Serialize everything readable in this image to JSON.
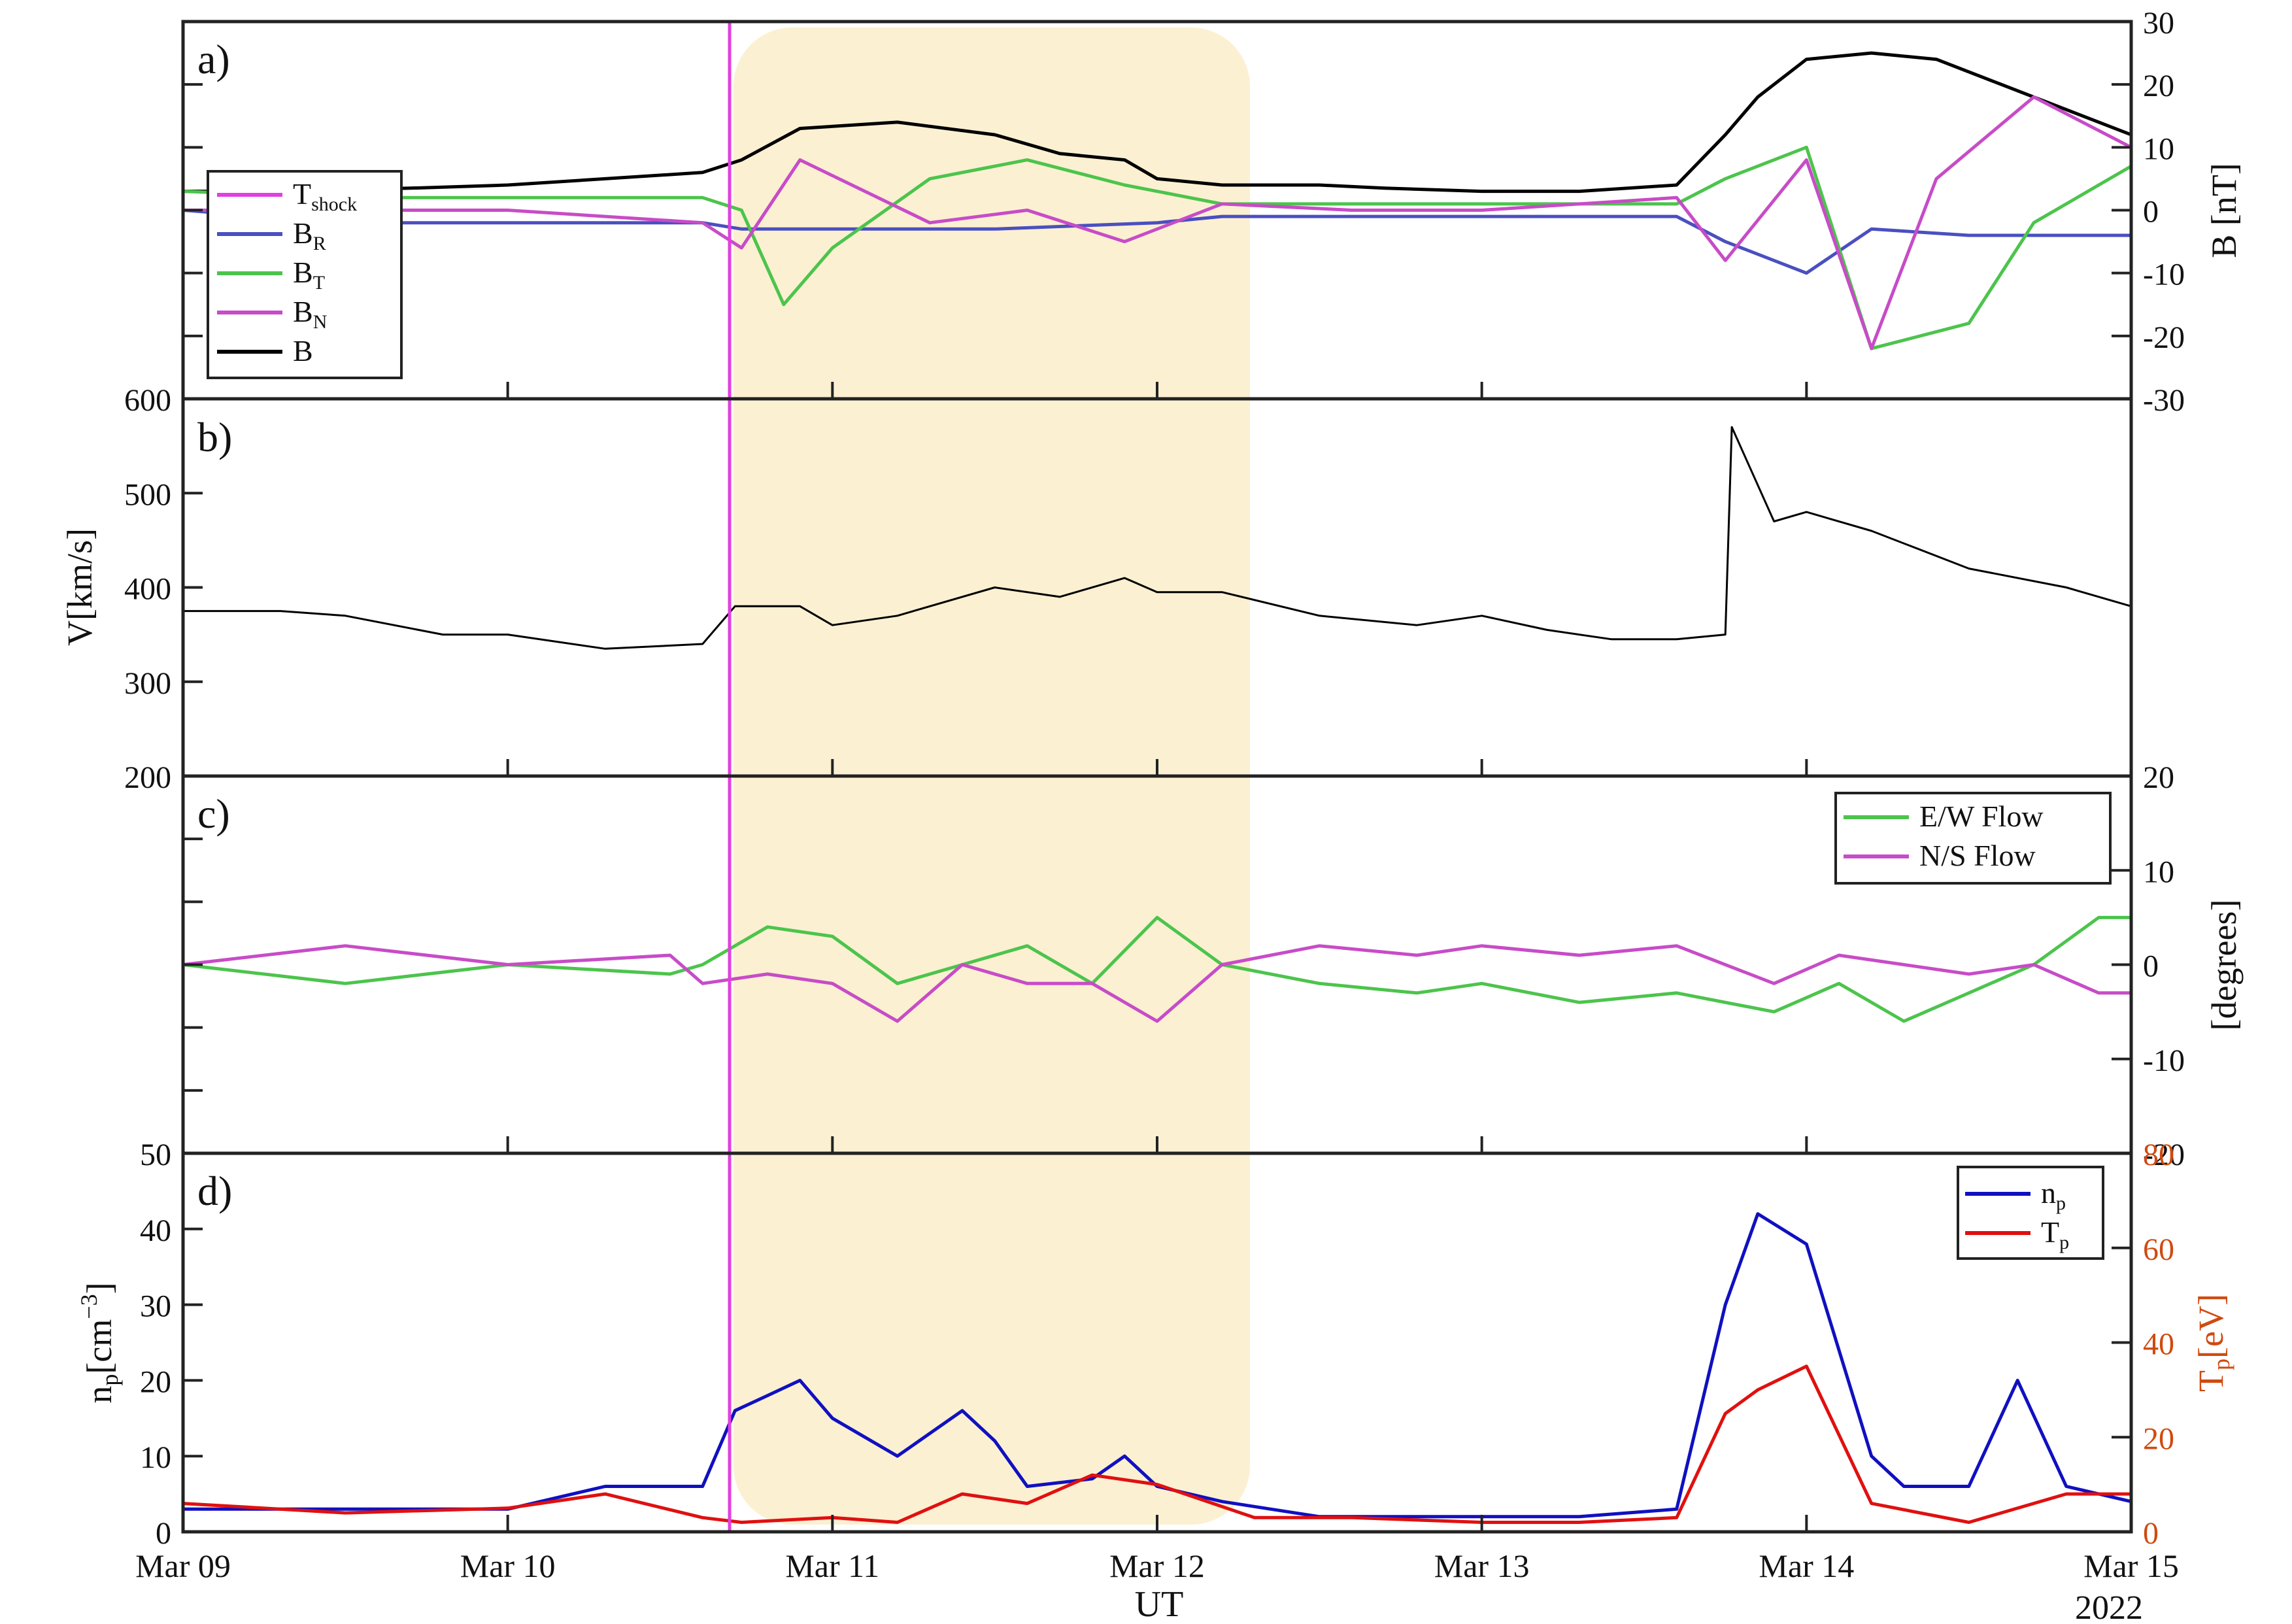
{
  "chart_data": [
    {
      "type": "line",
      "panel_label": "a)",
      "x_ticks": [
        "Mar 09",
        "Mar 10",
        "Mar 11",
        "Mar 12",
        "Mar 13",
        "Mar 14",
        "Mar 15"
      ],
      "ylabel": "B [nT]",
      "ylim": [
        -30,
        30
      ],
      "y_ticks": [
        "30",
        "20",
        "10",
        "0",
        "-10",
        "-20",
        "-30"
      ],
      "legend": {
        "placement": "left",
        "entries": [
          {
            "main": "T",
            "sub": "shock",
            "color": "#e040e0"
          },
          {
            "main": "B",
            "sub": "R",
            "color": "#4a4fc0"
          },
          {
            "main": "B",
            "sub": "T",
            "color": "#4cc44c"
          },
          {
            "main": "B",
            "sub": "N",
            "color": "#c74cc7"
          },
          {
            "main": "B",
            "sub": "",
            "color": "#000000"
          }
        ]
      },
      "series": [
        {
          "key": "B",
          "color": "#000000",
          "x": [
            0,
            0.3,
            0.7,
            1.0,
            1.3,
            1.6,
            1.72,
            1.9,
            2.2,
            2.5,
            2.7,
            2.9,
            3.0,
            3.2,
            3.5,
            3.7,
            4.0,
            4.3,
            4.6,
            4.75,
            4.85,
            5.0,
            5.2,
            5.4,
            5.7,
            6.0
          ],
          "y": [
            3,
            3,
            3.5,
            4,
            5,
            6,
            8,
            13,
            14,
            12,
            9,
            8,
            5,
            4,
            4,
            3.5,
            3,
            3,
            4,
            12,
            18,
            24,
            25,
            24,
            18,
            12
          ]
        },
        {
          "key": "BR",
          "color": "#4a4fc0",
          "x": [
            0,
            0.5,
            1.0,
            1.6,
            1.72,
            2.0,
            2.5,
            3.0,
            3.2,
            3.5,
            4.0,
            4.6,
            4.75,
            5.0,
            5.2,
            5.5,
            6.0
          ],
          "y": [
            0,
            -2,
            -2,
            -2,
            -3,
            -3,
            -3,
            -2,
            -1,
            -1,
            -1,
            -1,
            -5,
            -10,
            -3,
            -4,
            -4
          ]
        },
        {
          "key": "BT",
          "color": "#4cc44c",
          "x": [
            0,
            0.5,
            1.0,
            1.6,
            1.72,
            1.85,
            2.0,
            2.3,
            2.6,
            2.9,
            3.2,
            3.6,
            4.0,
            4.6,
            4.75,
            5.0,
            5.2,
            5.5,
            5.7,
            6.0
          ],
          "y": [
            3,
            2,
            2,
            2,
            0,
            -15,
            -6,
            5,
            8,
            4,
            1,
            1,
            1,
            1,
            5,
            10,
            -22,
            -18,
            -2,
            7
          ]
        },
        {
          "key": "BN",
          "color": "#c74cc7",
          "x": [
            0,
            0.5,
            1.0,
            1.6,
            1.72,
            1.9,
            2.3,
            2.6,
            2.9,
            3.2,
            3.6,
            4.0,
            4.6,
            4.75,
            5.0,
            5.2,
            5.4,
            5.7,
            6.0
          ],
          "y": [
            0,
            0,
            0,
            -2,
            -6,
            8,
            -2,
            0,
            -5,
            1,
            0,
            0,
            2,
            -8,
            8,
            -22,
            5,
            18,
            10
          ]
        }
      ]
    },
    {
      "type": "line",
      "panel_label": "b)",
      "ylabel": "V[km/s]",
      "ylim": [
        200,
        600
      ],
      "y_ticks": [
        "600",
        "500",
        "400",
        "300",
        "200"
      ],
      "series": [
        {
          "key": "V",
          "color": "#000000",
          "x": [
            0,
            0.3,
            0.5,
            0.8,
            1.0,
            1.3,
            1.6,
            1.7,
            1.9,
            2.0,
            2.2,
            2.5,
            2.7,
            2.9,
            3.0,
            3.2,
            3.5,
            3.8,
            4.0,
            4.2,
            4.4,
            4.6,
            4.75,
            4.77,
            4.9,
            5.0,
            5.2,
            5.5,
            5.8,
            6.0
          ],
          "y": [
            375,
            375,
            370,
            350,
            350,
            335,
            340,
            380,
            380,
            360,
            370,
            400,
            390,
            410,
            395,
            395,
            370,
            360,
            370,
            355,
            345,
            345,
            350,
            570,
            470,
            480,
            460,
            420,
            400,
            380
          ]
        }
      ]
    },
    {
      "type": "line",
      "panel_label": "c)",
      "ylabel": "[degrees]",
      "ylim": [
        -20,
        20
      ],
      "y_ticks": [
        "20",
        "10",
        "0",
        "-10",
        "-20"
      ],
      "legend": {
        "placement": "top-right",
        "entries": [
          {
            "label": "E/W Flow",
            "color": "#4cc44c"
          },
          {
            "label": "N/S Flow",
            "color": "#c74cc7"
          }
        ]
      },
      "series": [
        {
          "key": "EW",
          "color": "#4cc44c",
          "x": [
            0,
            0.5,
            1.0,
            1.5,
            1.6,
            1.8,
            2.0,
            2.2,
            2.4,
            2.6,
            2.8,
            3.0,
            3.2,
            3.5,
            3.8,
            4.0,
            4.3,
            4.6,
            4.9,
            5.1,
            5.3,
            5.5,
            5.7,
            5.9,
            6.0
          ],
          "y": [
            0,
            -2,
            0,
            -1,
            0,
            4,
            3,
            -2,
            0,
            2,
            -2,
            5,
            0,
            -2,
            -3,
            -2,
            -4,
            -3,
            -5,
            -2,
            -6,
            -3,
            0,
            5,
            5
          ]
        },
        {
          "key": "NS",
          "color": "#c74cc7",
          "x": [
            0,
            0.5,
            1.0,
            1.5,
            1.6,
            1.8,
            2.0,
            2.2,
            2.4,
            2.6,
            2.8,
            3.0,
            3.2,
            3.5,
            3.8,
            4.0,
            4.3,
            4.6,
            4.9,
            5.1,
            5.3,
            5.5,
            5.7,
            5.9,
            6.0
          ],
          "y": [
            0,
            2,
            0,
            1,
            -2,
            -1,
            -2,
            -6,
            0,
            -2,
            -2,
            -6,
            0,
            2,
            1,
            2,
            1,
            2,
            -2,
            1,
            0,
            -1,
            0,
            -3,
            -3
          ]
        }
      ]
    },
    {
      "type": "line",
      "panel_label": "d)",
      "xlabel": "UT",
      "year_label": "2022",
      "ylabel_left": "n_p[cm^-3]",
      "ylabel_right": "T_p[eV]",
      "ylim_left": [
        0,
        50
      ],
      "ylim_right": [
        0,
        80
      ],
      "y_ticks_left": [
        "50",
        "40",
        "30",
        "20",
        "10",
        "0"
      ],
      "y_ticks_right": [
        "80",
        "60",
        "40",
        "20",
        "0"
      ],
      "x_ticks": [
        "Mar 09",
        "Mar 10",
        "Mar 11",
        "Mar 12",
        "Mar 13",
        "Mar 14",
        "Mar 15"
      ],
      "legend": {
        "placement": "top-right",
        "entries": [
          {
            "main": "n",
            "sub": "p",
            "color": "#1010c0"
          },
          {
            "main": "T",
            "sub": "p",
            "color": "#e01010"
          }
        ]
      },
      "series": [
        {
          "key": "np",
          "axis": "left",
          "color": "#1010c0",
          "x": [
            0,
            0.5,
            1.0,
            1.3,
            1.6,
            1.7,
            1.8,
            1.9,
            2.0,
            2.2,
            2.4,
            2.5,
            2.6,
            2.8,
            2.9,
            3.0,
            3.2,
            3.5,
            3.8,
            4.0,
            4.3,
            4.6,
            4.75,
            4.85,
            5.0,
            5.2,
            5.3,
            5.5,
            5.65,
            5.8,
            6.0
          ],
          "y": [
            3,
            3,
            3,
            6,
            6,
            16,
            18,
            20,
            15,
            10,
            16,
            12,
            6,
            7,
            10,
            6,
            4,
            2,
            2,
            2,
            2,
            3,
            30,
            42,
            38,
            10,
            6,
            6,
            20,
            6,
            4
          ]
        },
        {
          "key": "Tp",
          "axis": "right",
          "color": "#e01010",
          "x": [
            0,
            0.5,
            1.0,
            1.3,
            1.6,
            1.72,
            2.0,
            2.2,
            2.4,
            2.6,
            2.8,
            3.0,
            3.3,
            3.6,
            4.0,
            4.3,
            4.6,
            4.75,
            4.85,
            5.0,
            5.2,
            5.5,
            5.8,
            6.0
          ],
          "y": [
            6,
            4,
            5,
            8,
            3,
            2,
            3,
            2,
            8,
            6,
            12,
            10,
            3,
            3,
            2,
            2,
            3,
            25,
            30,
            35,
            6,
            2,
            8,
            8
          ]
        }
      ]
    }
  ]
}
